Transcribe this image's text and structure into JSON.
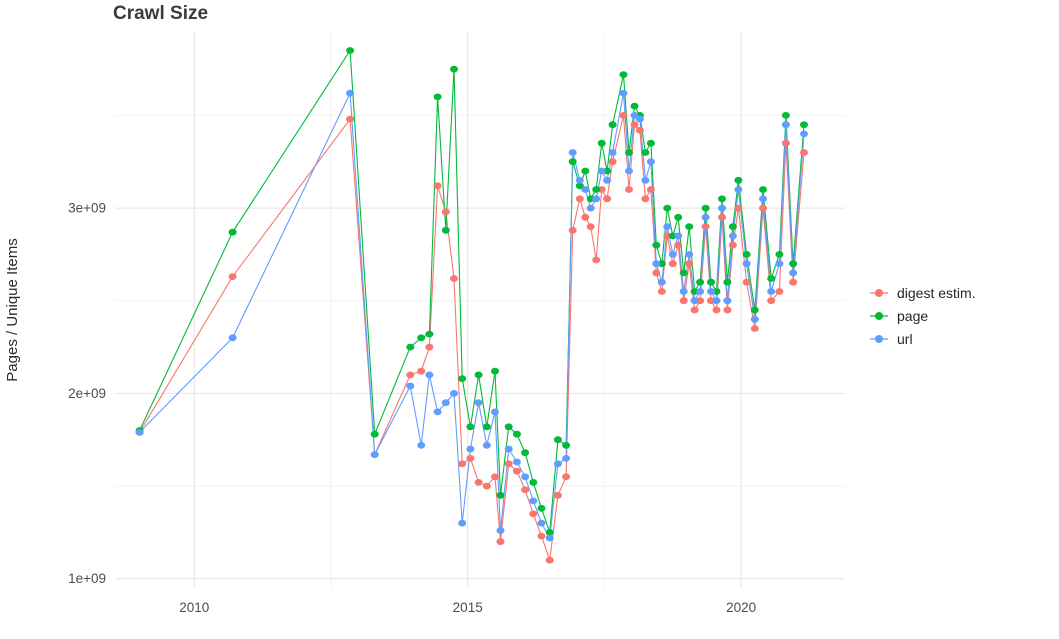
{
  "title": "Crawl Size",
  "axes": {
    "y_label": "Pages / Unique Items",
    "y_ticks": [
      "1e+09",
      "2e+09",
      "3e+09"
    ],
    "x_ticks": [
      "2010",
      "2015",
      "2020"
    ]
  },
  "legend": [
    {
      "label": "digest estim.",
      "color": "#F8766D"
    },
    {
      "label": "page",
      "color": "#00BA38"
    },
    {
      "label": "url",
      "color": "#619CFF"
    }
  ],
  "chart_data": {
    "type": "line",
    "title": "Crawl Size",
    "xlabel": "",
    "ylabel": "Pages / Unique Items",
    "y_unit": "1e+09 (values below are in billions)",
    "grid": true,
    "legend_position": "right",
    "x_range": [
      2008.55,
      2021.9
    ],
    "y_range": [
      0.95,
      3.95
    ],
    "x_tick_values": [
      2010,
      2015,
      2020
    ],
    "x_minor_values": [
      2012.5,
      2017.5
    ],
    "y_tick_values": [
      1,
      2,
      3
    ],
    "y_minor_values": [
      1.5,
      2.5,
      3.5
    ],
    "x": [
      2009.0,
      2010.7,
      2012.85,
      2013.3,
      2013.95,
      2014.15,
      2014.3,
      2014.45,
      2014.6,
      2014.75,
      2014.9,
      2015.05,
      2015.2,
      2015.35,
      2015.5,
      2015.6,
      2015.75,
      2015.9,
      2016.05,
      2016.2,
      2016.35,
      2016.5,
      2016.65,
      2016.8,
      2016.92,
      2017.05,
      2017.15,
      2017.25,
      2017.35,
      2017.45,
      2017.55,
      2017.65,
      2017.85,
      2017.95,
      2018.05,
      2018.15,
      2018.25,
      2018.35,
      2018.45,
      2018.55,
      2018.65,
      2018.75,
      2018.85,
      2018.95,
      2019.05,
      2019.15,
      2019.25,
      2019.35,
      2019.45,
      2019.55,
      2019.65,
      2019.75,
      2019.85,
      2019.95,
      2020.1,
      2020.25,
      2020.4,
      2020.55,
      2020.7,
      2020.82,
      2020.95,
      2021.15
    ],
    "series": [
      {
        "name": "digest estim.",
        "color": "#F8766D",
        "values": [
          1.79,
          2.63,
          3.48,
          1.67,
          2.1,
          2.12,
          2.25,
          3.12,
          2.98,
          2.62,
          1.62,
          1.65,
          1.52,
          1.5,
          1.55,
          1.2,
          1.62,
          1.58,
          1.48,
          1.35,
          1.23,
          1.1,
          1.45,
          1.55,
          2.88,
          3.05,
          2.95,
          2.9,
          2.72,
          3.1,
          3.05,
          3.25,
          3.5,
          3.1,
          3.45,
          3.42,
          3.05,
          3.1,
          2.65,
          2.55,
          2.85,
          2.7,
          2.8,
          2.5,
          2.7,
          2.45,
          2.5,
          2.9,
          2.5,
          2.45,
          2.95,
          2.45,
          2.8,
          3.0,
          2.6,
          2.35,
          3.0,
          2.5,
          2.55,
          3.35,
          2.6,
          3.3
        ]
      },
      {
        "name": "page",
        "color": "#00BA38",
        "values": [
          1.8,
          2.87,
          3.85,
          1.78,
          2.25,
          2.3,
          2.32,
          3.6,
          2.88,
          3.75,
          2.08,
          1.82,
          2.1,
          1.82,
          2.12,
          1.45,
          1.82,
          1.78,
          1.68,
          1.52,
          1.38,
          1.25,
          1.75,
          1.72,
          3.25,
          3.12,
          3.2,
          3.05,
          3.1,
          3.35,
          3.2,
          3.45,
          3.72,
          3.3,
          3.55,
          3.5,
          3.3,
          3.35,
          2.8,
          2.7,
          3.0,
          2.85,
          2.95,
          2.65,
          2.9,
          2.55,
          2.6,
          3.0,
          2.6,
          2.55,
          3.05,
          2.6,
          2.9,
          3.15,
          2.75,
          2.45,
          3.1,
          2.62,
          2.75,
          3.5,
          2.7,
          3.45
        ]
      },
      {
        "name": "url",
        "color": "#619CFF",
        "values": [
          1.79,
          2.3,
          3.62,
          1.67,
          2.04,
          1.72,
          2.1,
          1.9,
          1.95,
          2.0,
          1.3,
          1.7,
          1.95,
          1.72,
          1.9,
          1.26,
          1.7,
          1.63,
          1.55,
          1.42,
          1.3,
          1.22,
          1.62,
          1.65,
          3.3,
          3.15,
          3.1,
          3.0,
          3.05,
          3.2,
          3.15,
          3.3,
          3.62,
          3.2,
          3.5,
          3.48,
          3.15,
          3.25,
          2.7,
          2.6,
          2.9,
          2.75,
          2.85,
          2.55,
          2.75,
          2.5,
          2.55,
          2.95,
          2.55,
          2.5,
          3.0,
          2.5,
          2.85,
          3.1,
          2.7,
          2.4,
          3.05,
          2.55,
          2.7,
          3.45,
          2.65,
          3.4
        ]
      }
    ],
    "grid_colors": {
      "major": "#e4e4e4",
      "minor": "#f2f2f2"
    }
  }
}
